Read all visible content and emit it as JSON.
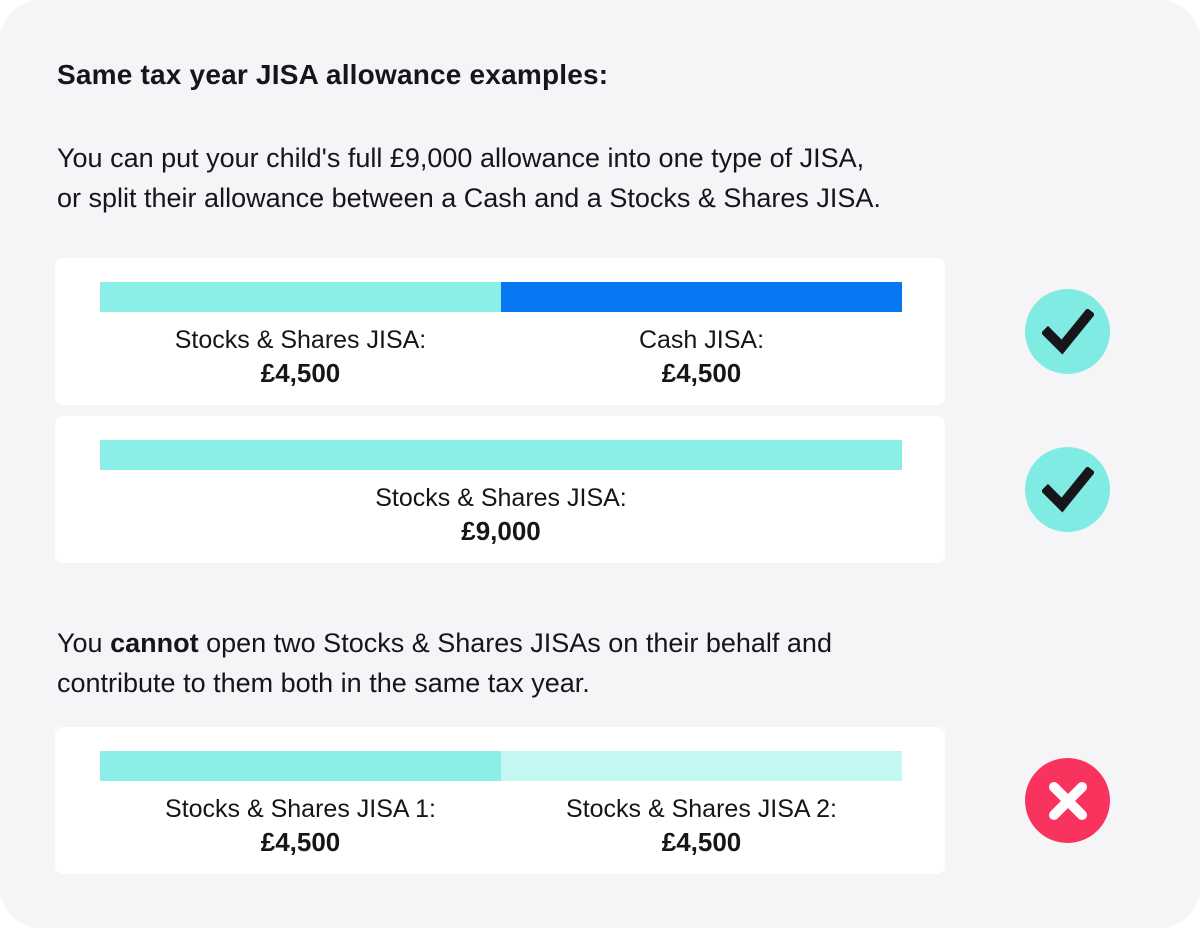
{
  "page": {
    "outer_background": "#FFFFFF",
    "panel_background": "#F5F5F7",
    "text_color": "#15151A"
  },
  "heading": "Same tax year JISA allowance examples:",
  "intro": {
    "line1": "You can put your child's full £9,000 allowance into one type of JISA,",
    "line2": "or split their allowance between a Cash and a Stocks & Shares JISA."
  },
  "note": {
    "line1_before": "You ",
    "line1_bold": "cannot",
    "line1_after": " open two Stocks & Shares JISAs on their behalf and",
    "line2": "contribute to them both in the same tax year."
  },
  "examples": [
    {
      "status": "allowed",
      "segments": [
        {
          "label": "Stocks & Shares JISA:",
          "value": "£4,500",
          "color": "#8BEFE7",
          "width_pct": 50
        },
        {
          "label": "Cash JISA:",
          "value": "£4,500",
          "color": "#0778F2",
          "width_pct": 50
        }
      ]
    },
    {
      "status": "allowed",
      "segments": [
        {
          "label": "Stocks & Shares JISA:",
          "value": "£9,000",
          "color": "#8BEFE7",
          "width_pct": 100
        }
      ]
    },
    {
      "status": "not-allowed",
      "segments": [
        {
          "label": "Stocks & Shares JISA 1:",
          "value": "£4,500",
          "color": "#8BEFE7",
          "width_pct": 50
        },
        {
          "label": "Stocks & Shares JISA 2:",
          "value": "£4,500",
          "color": "#C4F6F2",
          "width_pct": 50
        }
      ]
    }
  ],
  "icons": {
    "check_bg": "#7FEBE2",
    "check_color": "#15151A",
    "cross_bg": "#F8335D",
    "cross_color": "#FFFFFF"
  }
}
